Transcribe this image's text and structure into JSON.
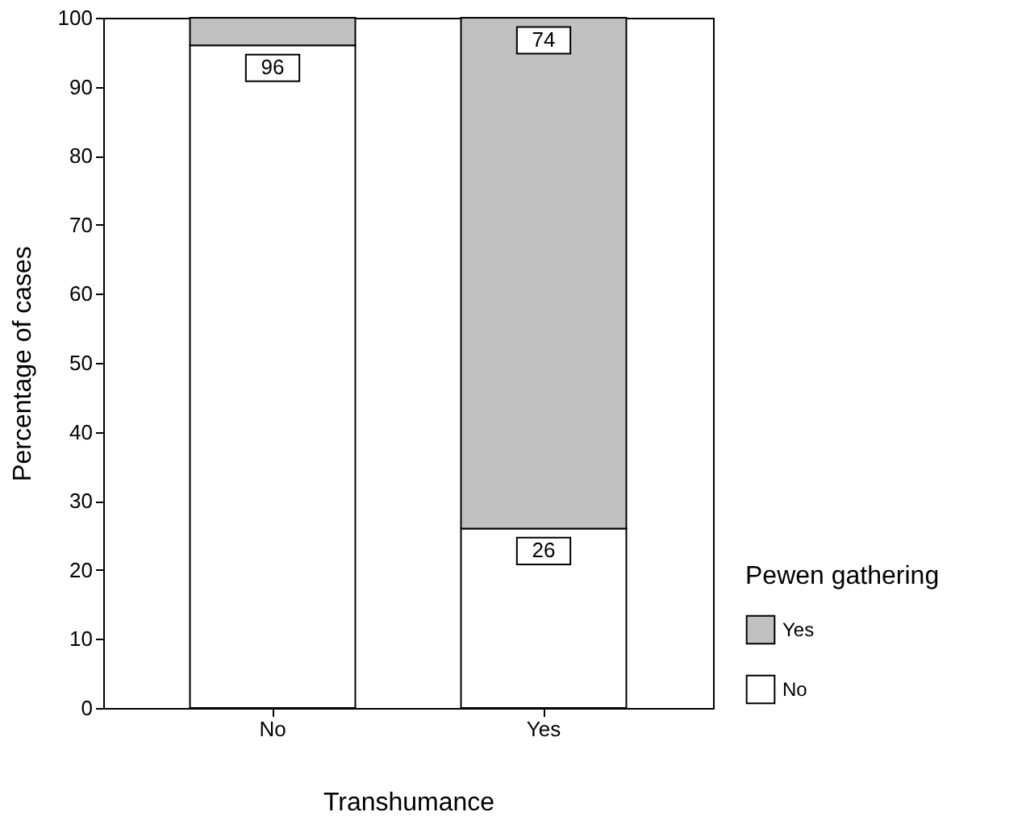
{
  "chart_data": {
    "type": "bar",
    "stacked": true,
    "categories": [
      "No",
      "Yes"
    ],
    "series": [
      {
        "name": "No",
        "color": "#ffffff",
        "values": [
          96,
          26
        ],
        "value_labels": [
          "96",
          "26"
        ]
      },
      {
        "name": "Yes",
        "color": "#c0c0c0",
        "values": [
          4,
          74
        ],
        "value_labels": [
          null,
          "74"
        ]
      }
    ],
    "xlabel": "Transhumance",
    "ylabel": "Percentage of cases",
    "legend_title": "Pewen gathering",
    "legend": "bottom right",
    "ylim": [
      0,
      100
    ],
    "yticks": [
      0,
      10,
      20,
      30,
      40,
      50,
      60,
      70,
      80,
      90,
      100
    ],
    "grid": false
  }
}
